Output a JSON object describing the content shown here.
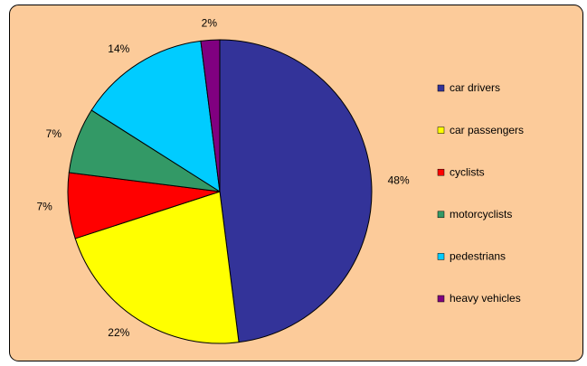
{
  "chart_data": {
    "type": "pie",
    "categories": [
      "car drivers",
      "car passengers",
      "cyclists",
      "motorcyclists",
      "pedestrians",
      "heavy vehicles"
    ],
    "values": [
      48,
      22,
      7,
      7,
      14,
      2
    ],
    "value_labels": [
      "48%",
      "22%",
      "7%",
      "7%",
      "14%",
      "2%"
    ],
    "colors": [
      "#333399",
      "#ffff00",
      "#ff0000",
      "#339966",
      "#00ccff",
      "#800080"
    ],
    "legend": "right"
  }
}
